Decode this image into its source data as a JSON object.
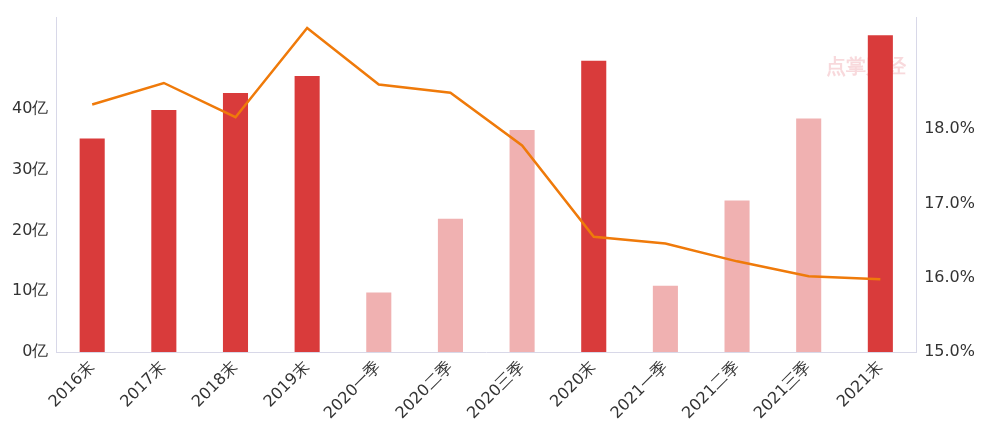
{
  "chart_data": {
    "type": "bar",
    "categories": [
      "2016末",
      "2017末",
      "2018末",
      "2019末",
      "2020一季",
      "2020二季",
      "2020三季",
      "2020末",
      "2021一季",
      "2021二季",
      "2021三季",
      "2021末"
    ],
    "series": [
      {
        "type": "bar",
        "colors": [
          "#d93b3b",
          "#d93b3b",
          "#d93b3b",
          "#d93b3b",
          "#f0b1b1",
          "#f0b1b1",
          "#f0b1b1",
          "#d93b3b",
          "#f0b1b1",
          "#f0b1b1",
          "#f0b1b1",
          "#d93b3b"
        ],
        "values": [
          35.1,
          39.8,
          42.6,
          45.4,
          9.8,
          21.9,
          36.5,
          47.9,
          10.9,
          24.9,
          38.4,
          52.1
        ]
      },
      {
        "type": "line",
        "color": "#ef7a0a",
        "axis": "y2",
        "values": [
          18.33,
          18.62,
          18.16,
          19.36,
          18.6,
          18.49,
          17.78,
          16.55,
          16.46,
          16.22,
          16.02,
          15.98
        ]
      }
    ],
    "ylim": [
      0,
      55
    ],
    "yticks": [
      {
        "value": 0,
        "label": "0亿"
      },
      {
        "value": 10,
        "label": "10亿"
      },
      {
        "value": 20,
        "label": "20亿"
      },
      {
        "value": 30,
        "label": "30亿"
      },
      {
        "value": 40,
        "label": "40亿"
      }
    ],
    "y2lim": [
      15,
      19.5
    ],
    "y2ticks": [
      {
        "value": 15,
        "label": "15.0%"
      },
      {
        "value": 16,
        "label": "16.0%"
      },
      {
        "value": 17,
        "label": "17.0%"
      },
      {
        "value": 18,
        "label": "18.0%"
      }
    ],
    "annotations": [
      "点掌财经"
    ],
    "grid": false
  }
}
